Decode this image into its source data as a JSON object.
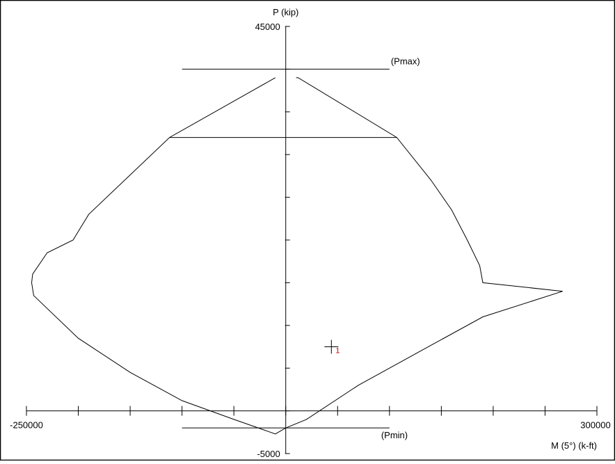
{
  "chart_data": {
    "type": "line",
    "y_axis": {
      "label": "P (kip)",
      "range": [
        -5000,
        45000
      ],
      "tick_labels": [
        "45000",
        "-5000"
      ]
    },
    "x_axis": {
      "label": "M (5°) (k-ft)",
      "range": [
        -250000,
        300000
      ],
      "tick_labels": [
        "-250000",
        "300000"
      ]
    },
    "reference_lines": [
      {
        "label": "(Pmax)",
        "y": 40000,
        "x_from": -100000,
        "x_to": 100000
      },
      {
        "label": "(Pmin)",
        "y": -2000,
        "x_from": -100000,
        "x_to": 100000
      },
      {
        "label": "",
        "y": 32000,
        "x_from": -112000,
        "x_to": 107000
      }
    ],
    "series": [
      {
        "x": [
          -10000,
          -112000,
          -190000,
          -200000,
          -205000,
          -230000,
          -244000,
          -245000,
          -243000,
          -200000,
          -150000,
          -100000,
          -50000,
          -10000,
          0,
          20000,
          70000,
          130000,
          190000,
          267000,
          190000,
          187000,
          175000,
          160000,
          140000,
          107000,
          12000,
          10000
        ],
        "y": [
          39000,
          32000,
          23000,
          21000,
          20000,
          18500,
          16000,
          15000,
          13500,
          8500,
          4500,
          1200,
          -1000,
          -2700,
          -2000,
          -1000,
          3000,
          7000,
          11000,
          14000,
          15000,
          17000,
          20000,
          23500,
          27000,
          32000,
          39000,
          39000
        ]
      }
    ],
    "points": [
      {
        "label": "1",
        "x": 44000,
        "y": 7500
      }
    ],
    "grid": false,
    "colors": {
      "curve": "#000000",
      "point_label": "#d10000",
      "frame": "#000000"
    }
  }
}
